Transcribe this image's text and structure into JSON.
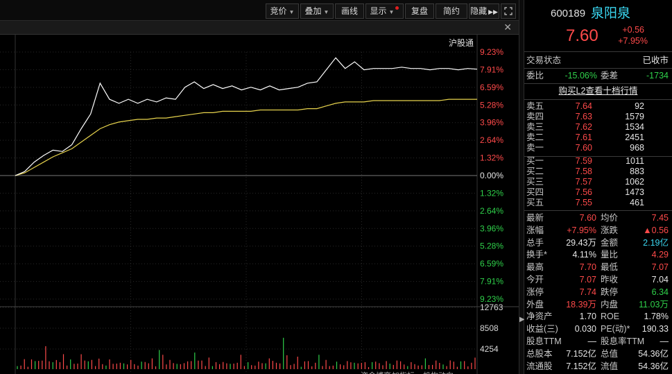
{
  "toolbar": {
    "bidding": "竞价",
    "overlay": "叠加",
    "draw": "画线",
    "display": "显示",
    "review": "复盘",
    "simple": "简约",
    "hide": "隐藏"
  },
  "chart": {
    "connect_label": "沪股通",
    "axis_pct": [
      "9.23%",
      "7.91%",
      "6.59%",
      "5.28%",
      "3.96%",
      "2.64%",
      "1.32%",
      "0.00%",
      "1.32%",
      "2.64%",
      "3.96%",
      "5.28%",
      "6.59%",
      "7.91%",
      "9.23%"
    ],
    "vol_axis": [
      "12763",
      "8508",
      "4254"
    ],
    "bottom_tabs": [
      "资金博弈",
      "加指标",
      "机构动向"
    ]
  },
  "chart_data": {
    "type": "line",
    "title": "",
    "price_series": [
      0.0,
      0.3,
      1.0,
      1.5,
      1.9,
      1.8,
      2.3,
      3.5,
      4.6,
      6.9,
      5.7,
      5.4,
      5.7,
      5.4,
      5.7,
      5.5,
      5.8,
      5.7,
      6.6,
      7.0,
      6.5,
      6.8,
      6.5,
      6.7,
      6.4,
      6.6,
      6.4,
      6.7,
      6.4,
      6.5,
      6.6,
      6.9,
      7.0,
      7.9,
      8.8,
      8.0,
      8.5,
      7.9,
      8.0,
      8.0,
      8.0,
      8.1,
      8.0,
      8.0,
      7.9,
      8.0,
      8.0,
      7.9,
      8.0,
      7.95
    ],
    "avg_series": [
      0.0,
      0.2,
      0.6,
      1.0,
      1.4,
      1.7,
      2.0,
      2.5,
      3.0,
      3.5,
      3.8,
      4.0,
      4.1,
      4.2,
      4.2,
      4.3,
      4.3,
      4.4,
      4.5,
      4.6,
      4.7,
      4.7,
      4.8,
      4.8,
      4.8,
      4.8,
      4.9,
      4.9,
      4.9,
      4.9,
      4.9,
      5.0,
      5.0,
      5.2,
      5.4,
      5.5,
      5.5,
      5.5,
      5.6,
      5.6,
      5.6,
      5.6,
      5.6,
      5.6,
      5.6,
      5.6,
      5.7,
      5.7,
      5.7,
      5.7
    ],
    "y_range_pct": [
      -9.23,
      9.23
    ],
    "volume_max": 12763
  },
  "stock": {
    "code": "600189",
    "name": "泉阳泉",
    "price": "7.60",
    "change": "+0.56",
    "change_pct": "+7.95%",
    "status_label": "交易状态",
    "status_value": "已收市",
    "weibi_label": "委比",
    "weibi_value": "-15.06%",
    "weicha_label": "委差",
    "weicha_value": "-1734",
    "l2_link": "购买L2查看十档行情"
  },
  "orderbook": {
    "asks": [
      {
        "label": "卖五",
        "price": "7.64",
        "vol": "92"
      },
      {
        "label": "卖四",
        "price": "7.63",
        "vol": "1579"
      },
      {
        "label": "卖三",
        "price": "7.62",
        "vol": "1534"
      },
      {
        "label": "卖二",
        "price": "7.61",
        "vol": "2451"
      },
      {
        "label": "卖一",
        "price": "7.60",
        "vol": "968"
      }
    ],
    "bids": [
      {
        "label": "买一",
        "price": "7.59",
        "vol": "1011"
      },
      {
        "label": "买二",
        "price": "7.58",
        "vol": "883"
      },
      {
        "label": "买三",
        "price": "7.57",
        "vol": "1062"
      },
      {
        "label": "买四",
        "price": "7.56",
        "vol": "1473"
      },
      {
        "label": "买五",
        "price": "7.55",
        "vol": "461"
      }
    ]
  },
  "stats": [
    {
      "l1": "最新",
      "v1": "7.60",
      "c1": "red",
      "l2": "均价",
      "v2": "7.45",
      "c2": "red"
    },
    {
      "l1": "涨幅",
      "v1": "+7.95%",
      "c1": "red",
      "l2": "涨跌",
      "v2": "▲0.56",
      "c2": "red"
    },
    {
      "l1": "总手",
      "v1": "29.43万",
      "c1": "white",
      "l2": "金额",
      "v2": "2.19亿",
      "c2": "cyan"
    },
    {
      "l1": "换手*",
      "v1": "4.11%",
      "c1": "white",
      "l2": "量比",
      "v2": "4.29",
      "c2": "red"
    },
    {
      "l1": "最高",
      "v1": "7.70",
      "c1": "red",
      "l2": "最低",
      "v2": "7.07",
      "c2": "red"
    },
    {
      "l1": "今开",
      "v1": "7.07",
      "c1": "red",
      "l2": "昨收",
      "v2": "7.04",
      "c2": "white"
    },
    {
      "l1": "涨停",
      "v1": "7.74",
      "c1": "red",
      "l2": "跌停",
      "v2": "6.34",
      "c2": "green"
    },
    {
      "l1": "外盘",
      "v1": "18.39万",
      "c1": "red",
      "l2": "内盘",
      "v2": "11.03万",
      "c2": "green"
    },
    {
      "l1": "净资产",
      "v1": "1.70",
      "c1": "white",
      "l2": "ROE",
      "v2": "1.78%",
      "c2": "white"
    },
    {
      "l1": "收益(三)",
      "v1": "0.030",
      "c1": "white",
      "l2": "PE(动)*",
      "v2": "190.33",
      "c2": "white"
    },
    {
      "l1": "股息TTM",
      "v1": "—",
      "c1": "white",
      "l2": "股息率TTM",
      "v2": "—",
      "c2": "white"
    },
    {
      "l1": "总股本",
      "v1": "7.152亿",
      "c1": "white",
      "l2": "总值",
      "v2": "54.36亿",
      "c2": "white"
    },
    {
      "l1": "流通股",
      "v1": "7.152亿",
      "c1": "white",
      "l2": "流值",
      "v2": "54.36亿",
      "c2": "white"
    }
  ],
  "colors": {
    "up": "#ff4a4a",
    "down": "#2fd04a",
    "price_line": "#ffffff",
    "avg_line": "#e8d44d"
  }
}
